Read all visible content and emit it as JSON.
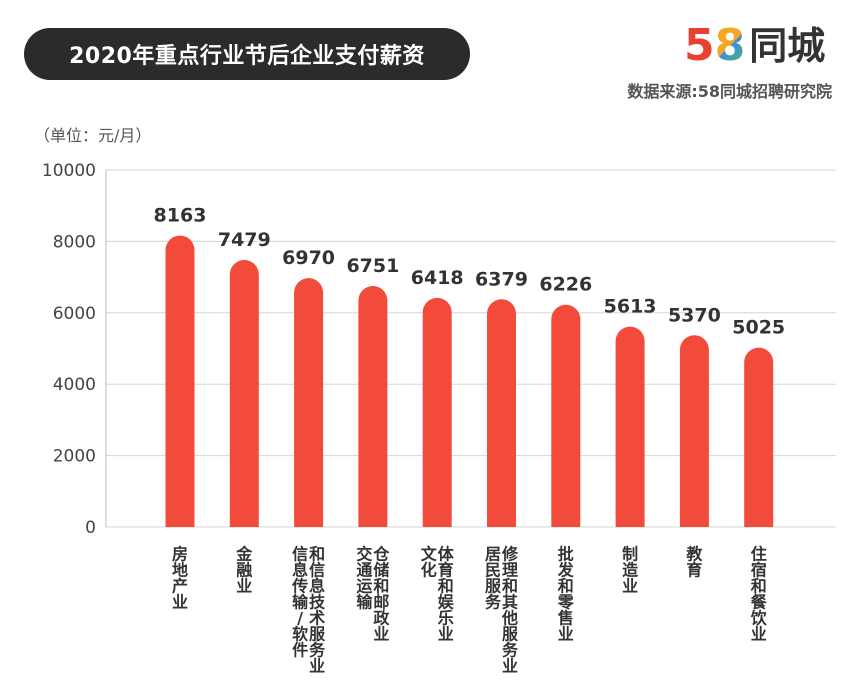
{
  "header": {
    "title": "2020年重点行业节后企业支付薪资",
    "logo_digit1": "5",
    "logo_digit2": "8",
    "logo_text": "同城",
    "logo_colors": [
      "#e8412f",
      "#f5a623",
      "#3b8de0",
      "#5cb85c"
    ],
    "source": "数据来源:58同城招聘研究院",
    "unit": "（单位：元/月）"
  },
  "chart_data": {
    "type": "bar",
    "title": "2020年重点行业节后企业支付薪资",
    "ylabel": "（单位：元/月）",
    "ylim": [
      0,
      10000
    ],
    "yticks": [
      "0",
      "2000",
      "4000",
      "6000",
      "8000",
      "10000"
    ],
    "grid": true,
    "bar_color": "#f24b3c",
    "categories": [
      "房地产业",
      "金融业",
      "信息传输/软件和信息技术服务业",
      "交通运输仓储和邮政业",
      "文化体育和娱乐业",
      "居民服务修理和其他服务业",
      "批发和零售业",
      "制造业",
      "教育",
      "住宿和餐饮业"
    ],
    "label_columns": [
      [
        "房地产业"
      ],
      [
        "金融业"
      ],
      [
        "信息传输/软件",
        "和信息技术服务业"
      ],
      [
        "交通运输",
        "仓储和邮政业"
      ],
      [
        "文化",
        "体育和娱乐业"
      ],
      [
        "居民服务",
        "修理和其他服务业"
      ],
      [
        "批发和零售业"
      ],
      [
        "制造业"
      ],
      [
        "教育"
      ],
      [
        "住宿和餐饮业"
      ]
    ],
    "values": [
      8163,
      7479,
      6970,
      6751,
      6418,
      6379,
      6226,
      5613,
      5370,
      5025
    ]
  }
}
